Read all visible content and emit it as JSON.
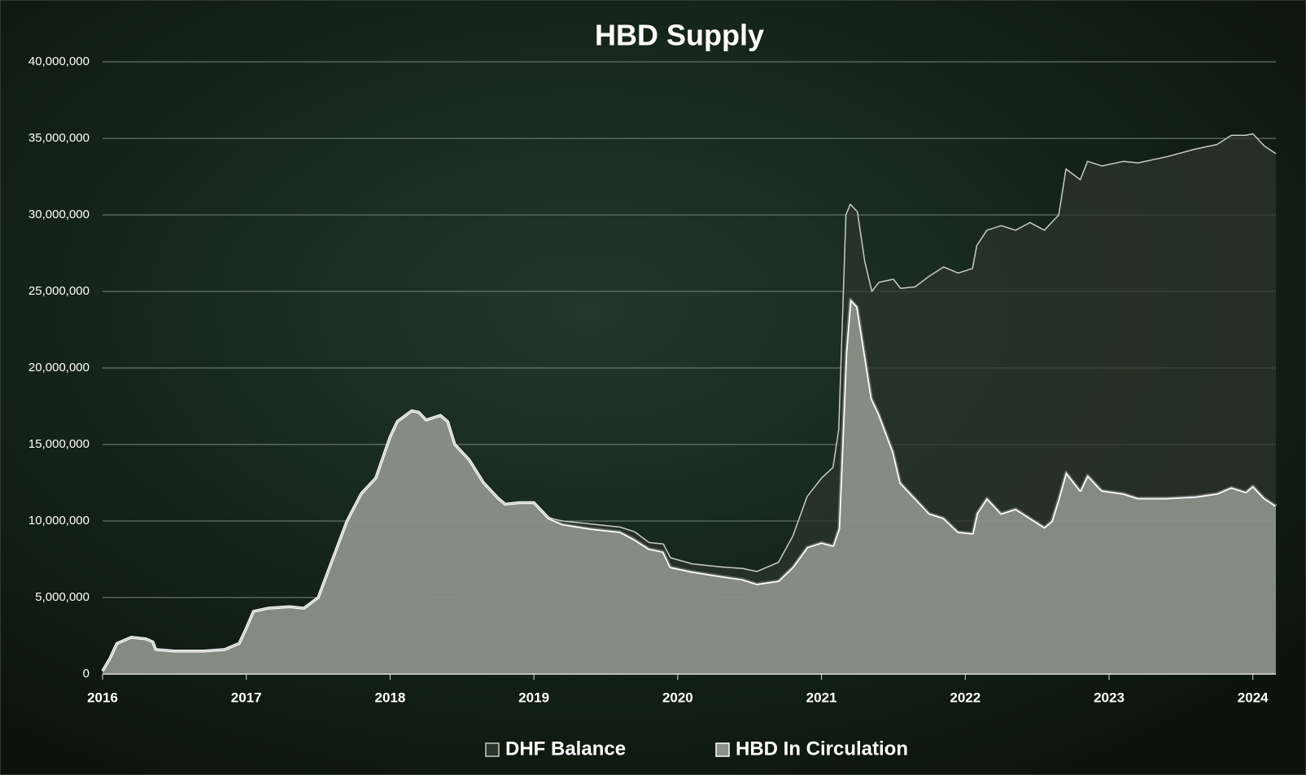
{
  "chart_data": {
    "type": "stacked_area",
    "title": "HBD Supply",
    "x": [
      2016.0,
      2016.05,
      2016.1,
      2016.2,
      2016.3,
      2016.35,
      2016.37,
      2016.5,
      2016.7,
      2016.85,
      2016.95,
      2017.0,
      2017.05,
      2017.15,
      2017.3,
      2017.4,
      2017.5,
      2017.6,
      2017.7,
      2017.8,
      2017.9,
      2018.0,
      2018.05,
      2018.15,
      2018.2,
      2018.25,
      2018.35,
      2018.4,
      2018.45,
      2018.55,
      2018.65,
      2018.75,
      2018.8,
      2018.9,
      2019.0,
      2019.1,
      2019.2,
      2019.4,
      2019.6,
      2019.7,
      2019.8,
      2019.9,
      2019.95,
      2020.1,
      2020.3,
      2020.45,
      2020.55,
      2020.7,
      2020.8,
      2020.9,
      2021.0,
      2021.08,
      2021.12,
      2021.17,
      2021.2,
      2021.25,
      2021.3,
      2021.35,
      2021.4,
      2021.5,
      2021.55,
      2021.65,
      2021.75,
      2021.85,
      2021.95,
      2022.05,
      2022.08,
      2022.15,
      2022.25,
      2022.35,
      2022.45,
      2022.55,
      2022.6,
      2022.65,
      2022.7,
      2022.8,
      2022.85,
      2022.95,
      2023.1,
      2023.2,
      2023.4,
      2023.6,
      2023.75,
      2023.85,
      2023.95,
      2024.0,
      2024.08,
      2024.16
    ],
    "series": [
      {
        "name": "DHF Balance",
        "color": "#2c3529",
        "line": "#c8ccc4",
        "values": [
          0,
          0,
          0,
          0,
          0,
          0,
          0,
          0,
          0,
          0,
          0,
          0,
          0,
          0,
          0,
          0,
          0,
          0,
          0,
          0,
          0,
          0,
          0,
          0,
          0,
          0,
          0,
          0,
          0,
          0,
          0,
          0,
          0,
          0,
          0,
          0,
          200000,
          300000,
          300000,
          500000,
          400000,
          500000,
          600000,
          500000,
          600000,
          700000,
          800000,
          1200000,
          2000000,
          3300000,
          4200000,
          5100000,
          6500000,
          9000000,
          6200000,
          6200000,
          6000000,
          7000000,
          8600000,
          11300000,
          12700000,
          13800000,
          15500000,
          16400000,
          16900000,
          17300000,
          17500000,
          17500000,
          18800000,
          18200000,
          19300000,
          19400000,
          19500000,
          18500000,
          19800000,
          20300000,
          20500000,
          21200000,
          21700000,
          21900000,
          22300000,
          22700000,
          22800000,
          23000000,
          23300000,
          23000000,
          23000000,
          23000000
        ]
      },
      {
        "name": "HBD In Circulation",
        "color": "#8c9187",
        "line": "#ffffff",
        "values": [
          200000,
          1000000,
          2000000,
          2400000,
          2300000,
          2100000,
          1600000,
          1500000,
          1500000,
          1600000,
          2000000,
          3000000,
          4100000,
          4300000,
          4400000,
          4300000,
          5000000,
          7500000,
          10000000,
          11800000,
          12800000,
          15500000,
          16500000,
          17200000,
          17100000,
          16600000,
          16900000,
          16500000,
          15000000,
          14000000,
          12500000,
          11500000,
          11100000,
          11200000,
          11200000,
          10200000,
          9800000,
          9500000,
          9300000,
          8800000,
          8200000,
          8000000,
          7000000,
          6700000,
          6400000,
          6200000,
          5900000,
          6100000,
          7000000,
          8300000,
          8600000,
          8400000,
          9500000,
          21000000,
          24500000,
          24000000,
          21000000,
          18000000,
          17000000,
          14500000,
          12500000,
          11500000,
          10500000,
          10200000,
          9300000,
          9200000,
          10500000,
          11500000,
          10500000,
          10800000,
          10200000,
          9600000,
          10000000,
          11500000,
          13200000,
          12000000,
          13000000,
          12000000,
          11800000,
          11500000,
          11500000,
          11600000,
          11800000,
          12200000,
          11900000,
          12300000,
          11500000,
          11000000
        ]
      }
    ],
    "xlim": [
      2016,
      2024.16
    ],
    "xticks": [
      2016,
      2017,
      2018,
      2019,
      2020,
      2021,
      2022,
      2023,
      2024
    ],
    "ylim": [
      0,
      40000000
    ],
    "yticks": [
      0,
      {
        "value": 5000000,
        "label": "5,000,000"
      },
      {
        "value": 10000000,
        "label": "10,000,000"
      },
      {
        "value": 15000000,
        "label": "15,000,000"
      },
      {
        "value": 20000000,
        "label": "20,000,000"
      },
      {
        "value": 25000000,
        "label": "25,000,000"
      },
      {
        "value": 30000000,
        "label": "30,000,000"
      },
      {
        "value": 35000000,
        "label": "35,000,000"
      },
      {
        "value": 40000000,
        "label": "40,000,000"
      }
    ],
    "grid": true,
    "legend": "bottom"
  }
}
